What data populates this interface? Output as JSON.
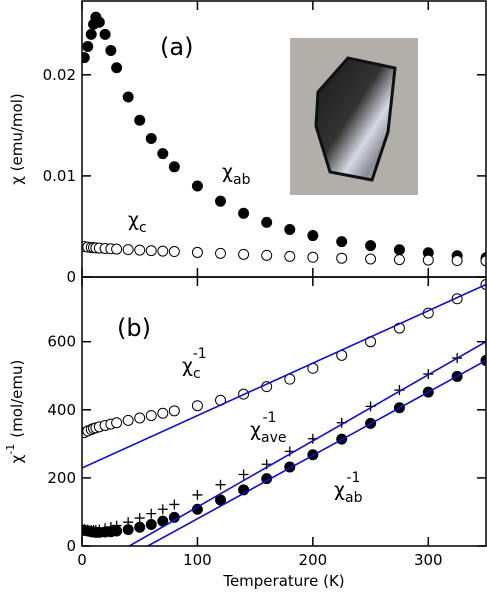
{
  "chart_data": [
    {
      "type": "scatter",
      "panel_label": "(a)",
      "y_label": "χ (emu/mol)",
      "xlim": [
        0,
        350
      ],
      "xticks": [
        0,
        100,
        200,
        300
      ],
      "ylim": [
        0,
        0.0273
      ],
      "yticks": [
        0,
        0.01,
        0.02
      ],
      "x": [
        2,
        5,
        8,
        10,
        12,
        15,
        20,
        25,
        30,
        40,
        50,
        60,
        70,
        80,
        100,
        120,
        140,
        160,
        180,
        200,
        225,
        250,
        275,
        300,
        325,
        350
      ],
      "series": [
        {
          "name": "χab",
          "marker": "filled-circle",
          "color": "#000000",
          "values": [
            0.0217,
            0.0228,
            0.024,
            0.025,
            0.0257,
            0.0252,
            0.024,
            0.0224,
            0.0207,
            0.0178,
            0.0155,
            0.0137,
            0.0122,
            0.0109,
            0.009,
            0.0075,
            0.0063,
            0.0054,
            0.0047,
            0.0041,
            0.0035,
            0.0031,
            0.0027,
            0.0024,
            0.0021,
            0.0019
          ]
        },
        {
          "name": "χc",
          "marker": "open-circle",
          "color": "#000000",
          "values": [
            0.003,
            0.00296,
            0.00292,
            0.0029,
            0.00288,
            0.00286,
            0.00282,
            0.00279,
            0.00276,
            0.00271,
            0.00266,
            0.00261,
            0.00256,
            0.00252,
            0.00243,
            0.00234,
            0.00224,
            0.00214,
            0.00204,
            0.00195,
            0.00186,
            0.00178,
            0.00172,
            0.00167,
            0.00163,
            0.0016
          ]
        }
      ],
      "annotations": [
        {
          "text": "χ",
          "sub": "ab"
        },
        {
          "text": "χ",
          "sub": "c"
        }
      ]
    },
    {
      "type": "scatter",
      "panel_label": "(b)",
      "y_label": "χ",
      "y_label_sup": "-1",
      "y_label_unit": "(mol/emu)",
      "x_label": "Temperature (K)",
      "xlim": [
        0,
        350
      ],
      "xticks": [
        0,
        100,
        200,
        300
      ],
      "ylim": [
        0,
        790
      ],
      "yticks": [
        0,
        200,
        400,
        600
      ],
      "x": [
        2,
        5,
        8,
        10,
        12,
        15,
        20,
        25,
        30,
        40,
        50,
        60,
        70,
        80,
        100,
        120,
        140,
        160,
        180,
        200,
        225,
        250,
        275,
        300,
        325,
        350
      ],
      "series": [
        {
          "name": "χc-1",
          "marker": "open-circle",
          "color": "#000000",
          "values": [
            333,
            338,
            342,
            345,
            347,
            350,
            354,
            358,
            362,
            369,
            376,
            383,
            390,
            397,
            412,
            428,
            446,
            468,
            490,
            522,
            560,
            600,
            640,
            684,
            726,
            768
          ]
        },
        {
          "name": "χave-1",
          "marker": "plus",
          "color": "#000000",
          "values": [
            50,
            48,
            47,
            47,
            47,
            48,
            52,
            56,
            60,
            70,
            82,
            95,
            108,
            122,
            150,
            180,
            210,
            240,
            278,
            315,
            362,
            410,
            458,
            505,
            552,
            600
          ]
        },
        {
          "name": "χab-1",
          "marker": "filled-circle",
          "color": "#000000",
          "values": [
            46,
            44,
            42,
            41,
            40,
            40,
            41,
            42,
            44,
            48,
            55,
            63,
            73,
            84,
            108,
            135,
            165,
            198,
            232,
            268,
            314,
            360,
            406,
            452,
            498,
            545
          ]
        },
        {
          "name": "fit-c",
          "marker": "line",
          "color": "#1010c8",
          "x": [
            0,
            350
          ],
          "values": [
            229,
            768
          ]
        },
        {
          "name": "fit-ave",
          "marker": "line",
          "color": "#1010c8",
          "x": [
            41,
            350
          ],
          "values": [
            0,
            600
          ]
        },
        {
          "name": "fit-ab",
          "marker": "line",
          "color": "#1010c8",
          "x": [
            57,
            350
          ],
          "values": [
            0,
            545
          ]
        }
      ],
      "annotations": [
        {
          "text": "χ",
          "sub": "c",
          "sup": "-1"
        },
        {
          "text": "χ",
          "sub": "ave",
          "sup": "-1"
        },
        {
          "text": "χ",
          "sub": "ab",
          "sup": "-1"
        }
      ]
    }
  ]
}
